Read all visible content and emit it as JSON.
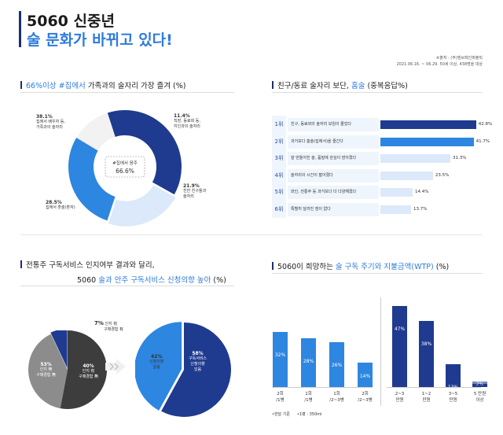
{
  "header": {
    "title_line1": "5060 신중년",
    "title_line2": "술 문화가 바뀌고 있다!",
    "source": "※출처 : (주)엠브레인퍼블릭",
    "period": "2021.06.16. ~ 06.29. 50세 이상, 438명을 대상"
  },
  "section1": {
    "title_blue": "66%이상 #집에서",
    "title_rest": " 가족과의 술자리 가장 즐겨 (%)"
  },
  "section2": {
    "title_rest": "친구/동료 술자리 보단, ",
    "title_blue": "홈술",
    "title_tail": " (중복응답%)"
  },
  "section3": {
    "title_line1": "전통주 구독서비스 인지여부 결과와 달리,",
    "title_line2_a": "5060 ",
    "title_line2_blue": "술과 안주 구독서비스 신청의향 높아",
    "title_line2_b": " (%)"
  },
  "section4": {
    "title_a": "5060이 희망하는 ",
    "title_blue": "술 구독 주기와 지불금액(WTP)",
    "title_b": " (%)"
  },
  "chart_data": [
    {
      "type": "pie",
      "variant": "donut",
      "center_label": "#집에서 음주",
      "center_value": "66.6%",
      "slices": [
        {
          "label": "집에서 배우자 등, 가족과의 술자리",
          "value": 38.1,
          "color": "#1f3b8f"
        },
        {
          "label": "친한 친구들과 술자리",
          "value": 21.9,
          "color": "#dbe9fa"
        },
        {
          "label": "집에서 혼술(혼자)",
          "value": 28.5,
          "color": "#2d86e0"
        },
        {
          "label": "직장, 동료회 등, 지인과의 술자리",
          "value": 11.4,
          "color": "#f2f2f2"
        }
      ],
      "display": {
        "family": {
          "pct": "38.1%",
          "text1": "집에서 배우자 등,",
          "text2": "가족과의 술자리"
        },
        "work": {
          "pct": "11.4%",
          "text1": "직장, 동료회 등,",
          "text2": "지인과의 술자리"
        },
        "friends": {
          "pct": "21.9%",
          "text1": "친한 친구들과",
          "text2": "술자리"
        },
        "alone": {
          "pct": "28.5%",
          "text1": "집에서 혼술(혼자)"
        }
      }
    },
    {
      "type": "bar",
      "orientation": "horizontal",
      "rank_prefix": [
        "1위",
        "2위",
        "3위",
        "4위",
        "5위",
        "6위"
      ],
      "categories": [
        "친구, 동료와의 술자리 모임이 줄었다",
        "과거보다 홈술(집에서)을 즐긴다",
        "잘 만들어진 술, 품질에 관심이 많아졌다",
        "술자리의 시간이 짧아졌다",
        "와인, 전통주 등 과거보다 더 다양해졌다",
        "특별히 달라진 점이 없다"
      ],
      "values": [
        42.8,
        41.7,
        31.3,
        23.5,
        14.4,
        13.7
      ],
      "labels": [
        "42.8%",
        "41.7%",
        "31.3%",
        "23.5%",
        "14.4%",
        "13.7%"
      ],
      "colors": [
        "#1f3b8f",
        "#2d86e0",
        "#dbe9fa",
        "#dbe9fa",
        "#dbe9fa",
        "#dbe9fa"
      ]
    },
    {
      "type": "pie",
      "title": "",
      "slices": [
        {
          "pct": "53%",
          "text1": "인지 無",
          "text2": "구매경험 無",
          "value": 53,
          "color": "#3d3d3d"
        },
        {
          "pct": "40%",
          "text1": "인지 有",
          "text2": "구매경험 無",
          "value": 40,
          "color": "#8c8c8c"
        },
        {
          "pct": "7%",
          "text1": "인지 有",
          "text2": "구매경험 有",
          "value": 7,
          "color": "#1f3b8f"
        }
      ]
    },
    {
      "type": "pie",
      "slices": [
        {
          "pct": "58%",
          "text1": "구독서비스",
          "text2": "신청의향",
          "text3": "있음",
          "value": 58,
          "color": "#1f3b8f"
        },
        {
          "pct": "42%",
          "text1": "신청의향",
          "text2": "없음",
          "value": 42,
          "color": "#2d86e0"
        }
      ]
    },
    {
      "type": "bar",
      "group": "주기",
      "categories": [
        [
          "2회",
          "/1병"
        ],
        [
          "1회",
          "/1병"
        ],
        [
          "1회",
          "/2~3병"
        ],
        [
          "2회",
          "/2~3병"
        ]
      ],
      "values": [
        32,
        28,
        26,
        14
      ],
      "labels": [
        "32%",
        "28%",
        "26%",
        "14%"
      ],
      "color": "#2d86e0",
      "ylim": [
        0,
        50
      ]
    },
    {
      "type": "bar",
      "group": "지불금액",
      "categories": [
        [
          "2~3",
          "만원"
        ],
        [
          "1~2",
          "만원"
        ],
        [
          "3~5",
          "만원"
        ],
        [
          "5 만원",
          "이상"
        ]
      ],
      "values": [
        47,
        38,
        13,
        2
      ],
      "labels": [
        "47%",
        "38%",
        "13%",
        "2%"
      ],
      "color": "#1f3b8f",
      "ylim": [
        0,
        50
      ]
    }
  ],
  "footnotes": [
    "•한달 기준",
    "•1병 : 350ml"
  ]
}
